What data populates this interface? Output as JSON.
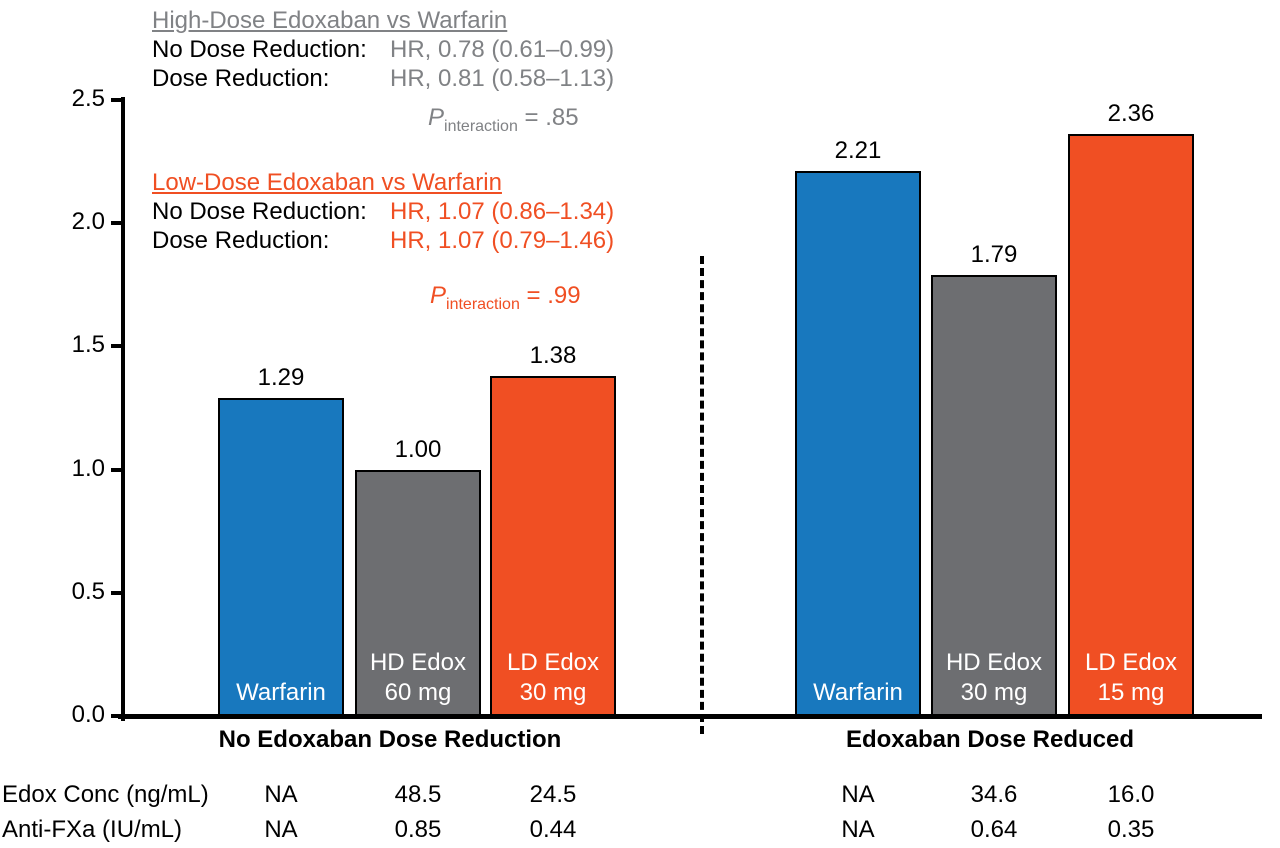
{
  "colors": {
    "blue": "#1878BE",
    "gray": "#6D6E71",
    "orange": "#F04F23",
    "annotation_gray": "#808285",
    "axis_black": "#000000"
  },
  "annotations": {
    "high_dose": {
      "title": "High-Dose Edoxaban vs Warfarin",
      "rows": [
        {
          "label": "No Dose Reduction:",
          "value": "HR, 0.78 (0.61–0.99)"
        },
        {
          "label": "Dose Reduction:",
          "value": "HR, 0.81 (0.58–1.13)"
        }
      ],
      "p_label": "P",
      "p_sub": "interaction",
      "p_text": " = .85"
    },
    "low_dose": {
      "title": "Low-Dose Edoxaban vs Warfarin",
      "rows": [
        {
          "label": "No Dose Reduction:",
          "value": "HR, 1.07 (0.86–1.34)"
        },
        {
          "label": "Dose Reduction:",
          "value": "HR, 1.07 (0.79–1.46)"
        }
      ],
      "p_label": "P",
      "p_sub": "interaction",
      "p_text": " = .99"
    }
  },
  "chart_data": {
    "type": "bar",
    "title": "",
    "ylim": [
      0,
      2.5
    ],
    "ytick_labels": [
      "0.0",
      "0.5",
      "1.0",
      "1.5",
      "2.0",
      "2.5"
    ],
    "grid": false,
    "groups": [
      {
        "label": "No Edoxaban Dose Reduction",
        "bars": [
          {
            "name": "Warfarin",
            "label_lines": [
              "Warfarin"
            ],
            "value": 1.29,
            "display": "1.29",
            "color": "blue"
          },
          {
            "name": "HD Edox 60 mg",
            "label_lines": [
              "HD Edox",
              "60 mg"
            ],
            "value": 1.0,
            "display": "1.00",
            "color": "gray"
          },
          {
            "name": "LD Edox 30 mg",
            "label_lines": [
              "LD Edox",
              "30 mg"
            ],
            "value": 1.38,
            "display": "1.38",
            "color": "orange"
          }
        ]
      },
      {
        "label": "Edoxaban Dose Reduced",
        "bars": [
          {
            "name": "Warfarin",
            "label_lines": [
              "Warfarin"
            ],
            "value": 2.21,
            "display": "2.21",
            "color": "blue"
          },
          {
            "name": "HD Edox 30 mg",
            "label_lines": [
              "HD Edox",
              "30 mg"
            ],
            "value": 1.79,
            "display": "1.79",
            "color": "gray"
          },
          {
            "name": "LD Edox 15 mg",
            "label_lines": [
              "LD Edox",
              "15 mg"
            ],
            "value": 2.36,
            "display": "2.36",
            "color": "orange"
          }
        ]
      }
    ],
    "table": {
      "rows": [
        {
          "label": "Edox Conc (ng/mL)",
          "values": [
            "NA",
            "48.5",
            "24.5",
            "NA",
            "34.6",
            "16.0"
          ]
        },
        {
          "label": "Anti-FXa (IU/mL)",
          "values": [
            "NA",
            "0.85",
            "0.44",
            "NA",
            "0.64",
            "0.35"
          ]
        }
      ]
    }
  }
}
